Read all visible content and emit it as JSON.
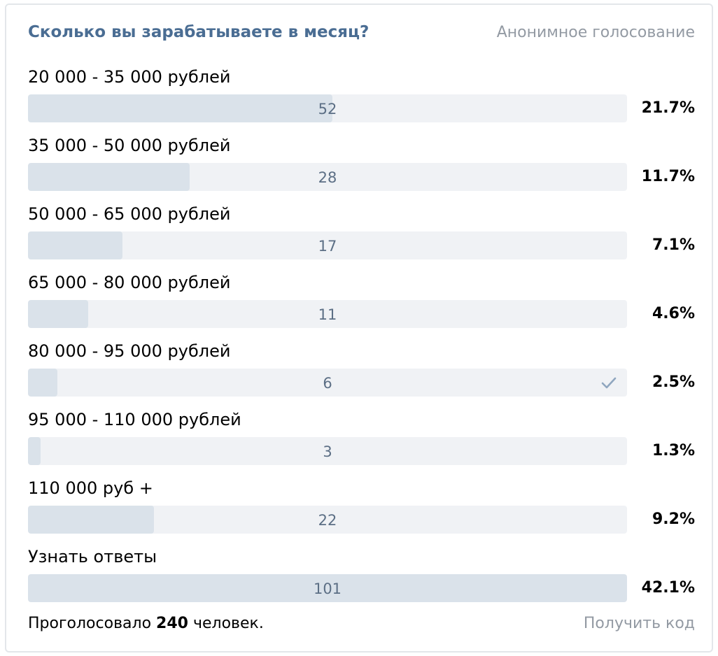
{
  "poll": {
    "question": "Сколько вы зарабатываете в месяц?",
    "type_label": "Анонимное голосование",
    "options": [
      {
        "label": "20 000 - 35 000 рублей",
        "count": "52",
        "percent": "21.7%",
        "share": 0.508,
        "voted": false
      },
      {
        "label": "35 000 - 50 000 рублей",
        "count": "28",
        "percent": "11.7%",
        "share": 0.27,
        "voted": false
      },
      {
        "label": "50 000 - 65 000 рублей",
        "count": "17",
        "percent": "7.1%",
        "share": 0.158,
        "voted": false
      },
      {
        "label": "65 000 - 80 000 рублей",
        "count": "11",
        "percent": "4.6%",
        "share": 0.1,
        "voted": false
      },
      {
        "label": "80 000 - 95 000 рублей",
        "count": "6",
        "percent": "2.5%",
        "share": 0.049,
        "voted": true
      },
      {
        "label": "95 000 - 110 000 рублей",
        "count": "3",
        "percent": "1.3%",
        "share": 0.021,
        "voted": false
      },
      {
        "label": "110 000 руб +",
        "count": "22",
        "percent": "9.2%",
        "share": 0.21,
        "voted": false
      },
      {
        "label": "Узнать ответы",
        "count": "101",
        "percent": "42.1%",
        "share": 1.0,
        "voted": false
      }
    ],
    "footer": {
      "voted_prefix": "Проголосовало",
      "voted_count": "240",
      "voted_suffix": "человек.",
      "get_code_label": "Получить код"
    }
  },
  "colors": {
    "title": "#4a6d93",
    "muted": "#939aa3",
    "bar_track": "#f0f2f5",
    "bar_fill": "#dae2ea",
    "count_text": "#5c6f85",
    "check": "#8fa6bf"
  },
  "icons": {
    "voted_marker": "checkmark-icon"
  }
}
